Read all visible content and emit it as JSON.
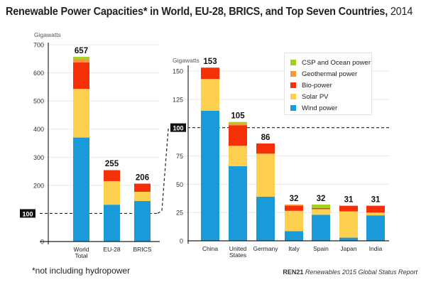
{
  "header": {
    "title": "Renewable Power Capacities* in World, EU-28, BRICS, and Top Seven Countries,",
    "title_year": "2014"
  },
  "footer": {
    "footnote": "*not including hydropower",
    "source_org": "REN21",
    "source_report": "Renewables 2015 Global Status Report"
  },
  "colors": {
    "wind": "#1a9ad9",
    "solar": "#fdd04f",
    "bio": "#f53008",
    "geo": "#f39a3a",
    "csp": "#a3d21c"
  },
  "chart_data": [
    {
      "type": "bar",
      "stacked": true,
      "title": "",
      "ylabel": "Gigawatts",
      "xlabel": "",
      "ylim": [
        0,
        700
      ],
      "yticks": [
        0,
        100,
        200,
        300,
        400,
        500,
        600,
        700
      ],
      "highlight_tick": 100,
      "grid": true,
      "categories": [
        "World Total",
        "EU-28",
        "BRICS"
      ],
      "category_lines": [
        [
          "World",
          "Total"
        ],
        [
          "EU-28"
        ],
        [
          "BRICS"
        ]
      ],
      "totals": [
        657,
        255,
        206
      ],
      "series": [
        {
          "name": "Wind power",
          "key": "wind",
          "values": [
            370,
            131,
            144
          ]
        },
        {
          "name": "Solar PV",
          "key": "solar",
          "values": [
            173,
            84,
            33
          ]
        },
        {
          "name": "Bio-power",
          "key": "bio",
          "values": [
            94,
            38,
            29
          ]
        },
        {
          "name": "Geothermal power",
          "key": "geo",
          "values": [
            13,
            1,
            0
          ]
        },
        {
          "name": "CSP and Ocean power",
          "key": "csp",
          "values": [
            7,
            1,
            0
          ]
        }
      ]
    },
    {
      "type": "bar",
      "stacked": true,
      "title": "",
      "ylabel": "Gigawatts",
      "xlabel": "",
      "ylim": [
        0,
        150
      ],
      "yticks": [
        0,
        25,
        50,
        75,
        100,
        125,
        150
      ],
      "highlight_tick": 100,
      "grid": true,
      "legend_position": "top-right",
      "categories": [
        "China",
        "United States",
        "Germany",
        "Italy",
        "Spain",
        "Japan",
        "India"
      ],
      "category_lines": [
        [
          "China"
        ],
        [
          "United",
          "States"
        ],
        [
          "Germany"
        ],
        [
          "Italy"
        ],
        [
          "Spain"
        ],
        [
          "Japan"
        ],
        [
          "India"
        ]
      ],
      "totals": [
        153,
        105,
        86,
        32,
        32,
        31,
        31
      ],
      "series": [
        {
          "name": "Wind power",
          "key": "wind",
          "values": [
            115,
            66,
            39,
            8.5,
            23,
            2.8,
            22.5
          ]
        },
        {
          "name": "Solar PV",
          "key": "solar",
          "values": [
            28,
            18,
            38,
            18,
            5,
            23.2,
            2.5
          ]
        },
        {
          "name": "Bio-power",
          "key": "bio",
          "values": [
            10,
            18,
            9,
            4.5,
            1,
            5,
            6
          ]
        },
        {
          "name": "Geothermal power",
          "key": "geo",
          "values": [
            0,
            1.5,
            0,
            1,
            0,
            0,
            0
          ]
        },
        {
          "name": "CSP and Ocean power",
          "key": "csp",
          "values": [
            0,
            1.5,
            0,
            0,
            3,
            0,
            0
          ]
        }
      ]
    }
  ],
  "legend": [
    {
      "label": "CSP and Ocean power",
      "key": "csp"
    },
    {
      "label": "Geothermal power",
      "key": "geo"
    },
    {
      "label": "Bio-power",
      "key": "bio"
    },
    {
      "label": "Solar PV",
      "key": "solar"
    },
    {
      "label": "Wind power",
      "key": "wind"
    }
  ]
}
